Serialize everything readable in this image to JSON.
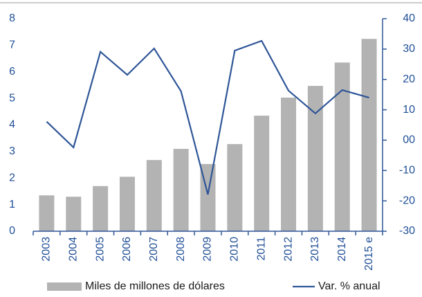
{
  "chart_data": {
    "type": "bar-line",
    "categories": [
      "2003",
      "2004",
      "2005",
      "2006",
      "2007",
      "2008",
      "2009",
      "2010",
      "2011",
      "2012",
      "2013",
      "2014",
      "2015 e"
    ],
    "series": [
      {
        "name": "Miles de millones de dólares",
        "type": "bar",
        "color": "#b3b3b3",
        "values": [
          1.35,
          1.3,
          1.7,
          2.05,
          2.68,
          3.1,
          2.53,
          3.28,
          4.35,
          5.03,
          5.47,
          6.35,
          7.24
        ]
      },
      {
        "name": "Var. % anual",
        "type": "line",
        "axis": "y2",
        "color": "#2e5597",
        "values": [
          6.1,
          -2.4,
          29.1,
          21.5,
          30.2,
          16.1,
          -17.9,
          29.5,
          32.7,
          16.3,
          8.8,
          16.5,
          14.0
        ]
      }
    ],
    "ylim": [
      0,
      8
    ],
    "yticks": [
      0,
      1,
      2,
      3,
      4,
      5,
      6,
      7,
      8
    ],
    "y2lim": [
      -30,
      40
    ],
    "y2ticks": [
      -30,
      -20,
      -10,
      {
        "value": 0,
        "label": "00"
      },
      10,
      20,
      30,
      40
    ],
    "legend": "bottom"
  }
}
